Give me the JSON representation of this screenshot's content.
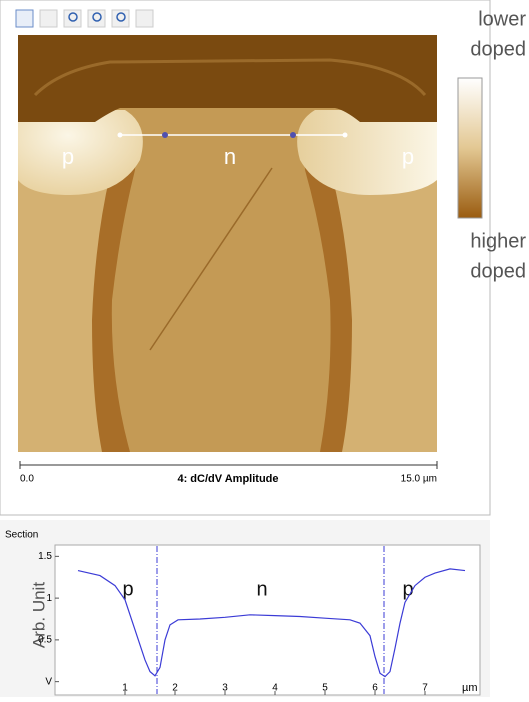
{
  "image": {
    "labels": [
      "p",
      "n",
      "p"
    ],
    "scale_start": "0.0",
    "scale_title": "4: dC/dV Amplitude",
    "scale_end": "15.0 µm"
  },
  "colorbar": {
    "top_label": [
      "lower",
      "doped"
    ],
    "bottom_label": [
      "higher",
      "doped"
    ]
  },
  "chart_data": {
    "type": "line",
    "title": "Section",
    "ylabel": "Arb. Unit",
    "xlabel": "µm",
    "annotations": [
      "p",
      "n",
      "p"
    ],
    "x": [
      0.06,
      0.5,
      0.8,
      1.0,
      1.2,
      1.4,
      1.5,
      1.6,
      1.7,
      1.8,
      1.9,
      2.06,
      2.5,
      3.0,
      3.5,
      4.0,
      4.5,
      5.0,
      5.5,
      5.7,
      5.9,
      6.0,
      6.1,
      6.2,
      6.3,
      6.4,
      6.5,
      6.6,
      6.8,
      7.0,
      7.2,
      7.5,
      7.8
    ],
    "series": [
      {
        "color": "#3b3bd6",
        "values": [
          1.33,
          1.27,
          1.15,
          0.98,
          0.62,
          0.26,
          0.12,
          0.07,
          0.17,
          0.5,
          0.68,
          0.74,
          0.75,
          0.77,
          0.8,
          0.79,
          0.78,
          0.76,
          0.74,
          0.7,
          0.55,
          0.3,
          0.1,
          0.06,
          0.12,
          0.4,
          0.7,
          0.95,
          1.15,
          1.25,
          1.3,
          1.35,
          1.33
        ]
      }
    ],
    "markers_x": [
      1.64,
      6.18
    ],
    "xlim": [
      -0.14,
      7.98
    ],
    "ylim": [
      -0.1,
      1.6
    ],
    "xticks": [
      1,
      2,
      3,
      4,
      5,
      6,
      7
    ],
    "yticks": [
      {
        "value": 0,
        "label": "V"
      },
      0.5,
      1,
      1.5
    ]
  }
}
